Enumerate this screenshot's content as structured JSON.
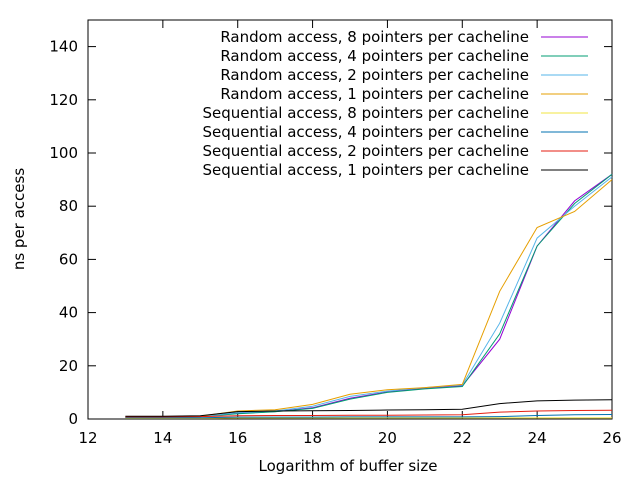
{
  "chart_data": {
    "type": "line",
    "title": "",
    "xlabel": "Logarithm of buffer size",
    "ylabel": "ns per access",
    "xlim": [
      12,
      26
    ],
    "ylim": [
      0,
      150
    ],
    "xticks": [
      12,
      14,
      16,
      18,
      20,
      22,
      24,
      26
    ],
    "yticks": [
      0,
      20,
      40,
      60,
      80,
      100,
      120,
      140
    ],
    "grid": false,
    "legend_position": "top-right",
    "x": [
      13,
      14,
      15,
      16,
      17,
      18,
      19,
      20,
      21,
      22,
      23,
      24,
      25,
      26
    ],
    "series": [
      {
        "name": "Random access, 8 pointers per cacheline",
        "color": "#9400d3",
        "values": [
          0.7,
          0.7,
          0.9,
          2.2,
          2.8,
          4.2,
          7.8,
          10.2,
          11.5,
          12.5,
          30,
          65,
          82,
          92
        ]
      },
      {
        "name": "Random access, 4 pointers per cacheline",
        "color": "#009e73",
        "values": [
          0.7,
          0.7,
          0.9,
          2.0,
          2.7,
          4.0,
          7.5,
          10.0,
          11.3,
          12.2,
          32,
          65,
          81,
          92
        ]
      },
      {
        "name": "Random access, 2 pointers per cacheline",
        "color": "#56b4e9",
        "values": [
          0.7,
          0.7,
          0.9,
          2.4,
          3.0,
          4.8,
          8.5,
          10.5,
          11.8,
          12.8,
          36,
          68,
          80,
          91
        ]
      },
      {
        "name": "Random access, 1 pointers per cacheline",
        "color": "#e69f00",
        "values": [
          0.8,
          0.8,
          1.0,
          3.0,
          3.5,
          5.5,
          9.3,
          11.0,
          11.8,
          13.0,
          48,
          72,
          78,
          90
        ]
      },
      {
        "name": "Sequential access, 8 pointers per cacheline",
        "color": "#f0e442",
        "values": [
          0.3,
          0.3,
          0.3,
          0.4,
          0.4,
          0.4,
          0.4,
          0.4,
          0.4,
          0.4,
          0.4,
          0.4,
          0.4,
          0.4
        ]
      },
      {
        "name": "Sequential access, 4 pointers per cacheline",
        "color": "#0072b2",
        "values": [
          0.5,
          0.5,
          0.5,
          0.7,
          0.7,
          0.7,
          0.8,
          0.8,
          0.8,
          0.8,
          0.9,
          1.3,
          1.6,
          1.7
        ]
      },
      {
        "name": "Sequential access, 2 pointers per cacheline",
        "color": "#e51e10",
        "values": [
          0.8,
          0.8,
          0.9,
          1.2,
          1.3,
          1.3,
          1.4,
          1.4,
          1.5,
          1.6,
          2.6,
          3.0,
          3.2,
          3.3
        ]
      },
      {
        "name": "Sequential access, 1 pointers per cacheline",
        "color": "#000000",
        "values": [
          1.0,
          1.0,
          1.2,
          2.8,
          3.0,
          3.1,
          3.2,
          3.4,
          3.5,
          3.7,
          5.8,
          6.8,
          7.1,
          7.2
        ]
      }
    ]
  }
}
